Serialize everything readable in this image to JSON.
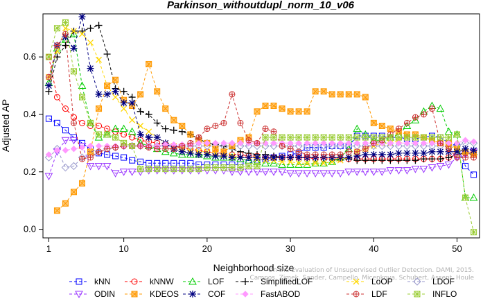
{
  "chart_data": {
    "type": "line",
    "title": "Parkinson_withoutdupl_norm_10_v06",
    "xlabel": "Neighborhood size",
    "ylabel": "Adjusted AP",
    "xlim": [
      1,
      52
    ],
    "ylim": [
      -0.03,
      0.75
    ],
    "xticks": [
      1,
      10,
      20,
      30,
      40,
      50
    ],
    "yticks": [
      0.0,
      0.2,
      0.4,
      0.6
    ],
    "legend_position": "bottom",
    "watermark": "Campos, Zimek, Sander, Campello, Micenkova, Schubert, Assent, Houle",
    "watermark_line1": "On the Evaluation of Unsupervised Outlier Detection. DAMI, 2015.",
    "x": [
      1,
      2,
      3,
      4,
      5,
      6,
      7,
      8,
      9,
      10,
      11,
      12,
      13,
      14,
      15,
      16,
      17,
      18,
      19,
      20,
      21,
      22,
      23,
      24,
      25,
      26,
      27,
      28,
      29,
      30,
      31,
      32,
      33,
      34,
      35,
      36,
      37,
      38,
      39,
      40,
      41,
      42,
      43,
      44,
      45,
      46,
      47,
      48,
      49,
      50,
      51,
      52
    ],
    "series": [
      {
        "name": "kNN",
        "color": "#0000ff",
        "marker": "square",
        "values": [
          0.385,
          0.37,
          0.345,
          0.32,
          0.3,
          0.28,
          0.265,
          0.26,
          0.255,
          0.25,
          0.24,
          0.235,
          0.23,
          0.23,
          0.23,
          0.23,
          0.23,
          0.23,
          0.225,
          0.225,
          0.225,
          0.225,
          0.225,
          0.225,
          0.23,
          0.24,
          0.245,
          0.25,
          0.255,
          0.26,
          0.265,
          0.285,
          0.285,
          0.285,
          0.29,
          0.29,
          0.29,
          0.325,
          0.325,
          0.325,
          0.325,
          0.32,
          0.32,
          0.315,
          0.315,
          0.32,
          0.325,
          0.32,
          0.3,
          0.29,
          0.22,
          0.19
        ]
      },
      {
        "name": "kNNW",
        "color": "#ff0000",
        "marker": "circle",
        "values": [
          0.6,
          0.46,
          0.42,
          0.39,
          0.37,
          0.36,
          0.36,
          0.35,
          0.34,
          0.33,
          0.32,
          0.31,
          0.305,
          0.3,
          0.295,
          0.29,
          0.285,
          0.28,
          0.275,
          0.27,
          0.265,
          0.265,
          0.26,
          0.26,
          0.255,
          0.255,
          0.25,
          0.25,
          0.25,
          0.25,
          0.25,
          0.25,
          0.245,
          0.245,
          0.245,
          0.245,
          0.245,
          0.245,
          0.245,
          0.245,
          0.245,
          0.245,
          0.245,
          0.245,
          0.245,
          0.245,
          0.245,
          0.245,
          0.25,
          0.26,
          0.265,
          0.27
        ]
      },
      {
        "name": "LOF",
        "color": "#00cc00",
        "marker": "triangle",
        "values": [
          0.51,
          0.63,
          0.66,
          0.68,
          0.5,
          0.37,
          0.32,
          0.33,
          0.35,
          0.35,
          0.34,
          0.3,
          0.29,
          0.28,
          0.27,
          0.265,
          0.26,
          0.26,
          0.26,
          0.255,
          0.25,
          0.25,
          0.25,
          0.245,
          0.24,
          0.235,
          0.23,
          0.23,
          0.225,
          0.225,
          0.225,
          0.225,
          0.23,
          0.23,
          0.235,
          0.25,
          0.28,
          0.35,
          0.33,
          0.31,
          0.31,
          0.32,
          0.33,
          0.36,
          0.38,
          0.41,
          0.43,
          0.42,
          0.34,
          0.33,
          0.11,
          0.11
        ]
      },
      {
        "name": "SimplifiedLOF",
        "color": "#000000",
        "marker": "plus",
        "values": [
          0.48,
          0.6,
          0.64,
          0.69,
          0.69,
          0.7,
          0.71,
          0.61,
          0.49,
          0.48,
          0.46,
          0.41,
          0.4,
          0.37,
          0.35,
          0.345,
          0.34,
          0.33,
          0.315,
          0.3,
          0.295,
          0.29,
          0.28,
          0.27,
          0.265,
          0.26,
          0.26,
          0.255,
          0.25,
          0.25,
          0.25,
          0.25,
          0.25,
          0.25,
          0.25,
          0.25,
          0.245,
          0.24,
          0.24,
          0.24,
          0.24,
          0.24,
          0.24,
          0.24,
          0.24,
          0.245,
          0.245,
          0.245,
          0.25,
          0.26,
          0.265,
          0.26
        ]
      },
      {
        "name": "LoOP",
        "color": "#ffd700",
        "marker": "x",
        "values": [
          0.53,
          0.62,
          0.7,
          0.69,
          0.68,
          0.65,
          0.59,
          0.5,
          0.46,
          0.42,
          0.38,
          0.36,
          0.34,
          0.32,
          0.3,
          0.29,
          0.28,
          0.275,
          0.27,
          0.27,
          0.265,
          0.26,
          0.255,
          0.25,
          0.25,
          0.245,
          0.24,
          0.24,
          0.235,
          0.235,
          0.23,
          0.23,
          0.23,
          0.23,
          0.235,
          0.24,
          0.25,
          0.27,
          0.28,
          0.29,
          0.3,
          0.3,
          0.31,
          0.32,
          0.32,
          0.32,
          0.31,
          0.3,
          0.29,
          0.28,
          0.27,
          0.265
        ]
      },
      {
        "name": "LDOF",
        "color": "#9999cc",
        "marker": "diamond",
        "values": [
          0.25,
          0.28,
          0.215,
          0.22,
          0.25,
          0.26,
          0.27,
          0.28,
          0.285,
          0.29,
          0.29,
          0.29,
          0.29,
          0.29,
          0.29,
          0.29,
          0.29,
          0.29,
          0.29,
          0.29,
          0.29,
          0.29,
          0.29,
          0.29,
          0.29,
          0.29,
          0.29,
          0.29,
          0.29,
          0.29,
          0.29,
          0.29,
          0.29,
          0.29,
          0.29,
          0.29,
          0.29,
          0.29,
          0.29,
          0.29,
          0.29,
          0.29,
          0.29,
          0.29,
          0.29,
          0.29,
          0.29,
          0.29,
          0.29,
          0.29,
          0.3,
          0.3
        ]
      },
      {
        "name": "ODIN",
        "color": "#9933ff",
        "marker": "triangle-down",
        "values": [
          0.185,
          0.27,
          0.31,
          0.31,
          0.29,
          0.22,
          0.22,
          0.22,
          0.195,
          0.2,
          0.2,
          0.2,
          0.205,
          0.205,
          0.205,
          0.205,
          0.205,
          0.205,
          0.205,
          0.205,
          0.205,
          0.205,
          0.2,
          0.2,
          0.2,
          0.2,
          0.2,
          0.2,
          0.2,
          0.195,
          0.195,
          0.195,
          0.195,
          0.195,
          0.195,
          0.195,
          0.2,
          0.2,
          0.2,
          0.2,
          0.2,
          0.205,
          0.205,
          0.205,
          0.21,
          0.21,
          0.215,
          0.22,
          0.225,
          0.25,
          0.26,
          0.27
        ]
      },
      {
        "name": "KDEOS",
        "color": "#ff9900",
        "marker": "square-x",
        "values": [
          null,
          0.065,
          0.09,
          0.13,
          0.16,
          0.27,
          0.42,
          0.5,
          0.52,
          0.45,
          0.43,
          0.47,
          0.575,
          0.48,
          0.42,
          0.38,
          0.36,
          0.33,
          0.31,
          0.3,
          0.28,
          0.27,
          0.29,
          0.31,
          0.32,
          0.41,
          0.43,
          0.43,
          0.42,
          0.41,
          0.41,
          0.41,
          0.48,
          0.48,
          0.47,
          0.47,
          0.47,
          0.47,
          0.46,
          0.37,
          0.36,
          0.35,
          0.34,
          0.33,
          0.33,
          0.32,
          0.31,
          0.3,
          0.3,
          0.28,
          0.27,
          0.26
        ]
      },
      {
        "name": "COF",
        "color": "#000080",
        "marker": "star",
        "values": [
          0.5,
          0.64,
          0.67,
          0.63,
          0.74,
          0.56,
          0.47,
          0.47,
          0.48,
          0.44,
          0.44,
          0.33,
          0.32,
          0.32,
          0.3,
          0.28,
          0.27,
          0.265,
          0.26,
          0.26,
          0.255,
          0.255,
          0.25,
          0.25,
          0.25,
          0.25,
          0.25,
          0.25,
          0.25,
          0.25,
          0.25,
          0.25,
          0.25,
          0.25,
          0.25,
          0.25,
          0.25,
          0.255,
          0.26,
          0.26,
          0.26,
          0.26,
          0.265,
          0.265,
          0.265,
          0.265,
          0.27,
          0.27,
          0.27,
          0.27,
          0.28,
          0.275
        ]
      },
      {
        "name": "FastABOD",
        "color": "#ff99ff",
        "marker": "diamond-filled",
        "values": [
          0.26,
          0.275,
          0.275,
          0.28,
          0.285,
          0.29,
          0.29,
          0.29,
          0.29,
          0.29,
          0.29,
          0.29,
          0.29,
          0.29,
          0.295,
          0.295,
          0.295,
          0.295,
          0.3,
          0.3,
          0.3,
          0.3,
          0.3,
          0.3,
          0.3,
          0.3,
          0.3,
          0.3,
          0.3,
          0.3,
          0.3,
          0.3,
          0.3,
          0.3,
          0.3,
          0.3,
          0.3,
          0.3,
          0.3,
          0.3,
          0.3,
          0.3,
          0.3,
          0.3,
          0.3,
          0.3,
          0.3,
          0.3,
          0.3,
          0.3,
          0.31,
          0.305
        ]
      },
      {
        "name": "LDF",
        "color": "#cc3333",
        "marker": "circle-plus",
        "values": [
          0.53,
          0.64,
          0.68,
          0.37,
          0.245,
          0.25,
          0.27,
          0.28,
          0.285,
          0.29,
          0.29,
          0.29,
          0.285,
          0.28,
          0.28,
          0.28,
          0.29,
          0.3,
          0.32,
          0.35,
          0.36,
          0.37,
          0.47,
          0.37,
          0.31,
          0.3,
          0.35,
          0.34,
          0.29,
          0.28,
          0.27,
          0.26,
          0.26,
          0.26,
          0.26,
          0.26,
          0.27,
          0.27,
          0.28,
          0.3,
          0.31,
          0.33,
          0.35,
          0.37,
          0.39,
          0.4,
          0.42,
          0.3,
          0.28,
          0.25,
          0.25,
          0.25
        ]
      },
      {
        "name": "INFLO",
        "color": "#99cc33",
        "marker": "star-box",
        "values": [
          0.6,
          0.7,
          0.72,
          0.55,
          0.46,
          0.37,
          0.33,
          0.33,
          0.32,
          0.3,
          0.29,
          0.21,
          0.21,
          0.21,
          0.21,
          0.21,
          0.21,
          0.21,
          0.21,
          0.215,
          0.215,
          0.215,
          0.215,
          0.215,
          0.22,
          0.22,
          0.32,
          0.32,
          0.32,
          0.32,
          0.32,
          0.32,
          0.32,
          0.32,
          0.32,
          0.32,
          0.32,
          0.32,
          0.32,
          0.32,
          0.32,
          0.32,
          0.32,
          0.32,
          0.32,
          0.32,
          0.32,
          0.32,
          0.32,
          0.33,
          0.11,
          -0.01
        ]
      }
    ]
  }
}
